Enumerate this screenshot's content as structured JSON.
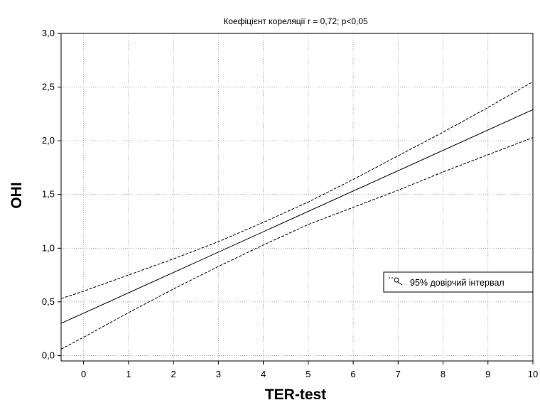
{
  "chart_data": {
    "type": "line",
    "title": "Коефіцієнт кореляції r = 0,72; p<0,05",
    "xlabel": "TER-test",
    "ylabel": "OHI",
    "xlim": [
      -0.5,
      10
    ],
    "ylim": [
      -0.05,
      3.0
    ],
    "x_ticks": [
      0,
      1,
      2,
      3,
      4,
      5,
      6,
      7,
      8,
      9,
      10
    ],
    "x_tick_labels": [
      "0",
      "1",
      "2",
      "3",
      "4",
      "5",
      "6",
      "7",
      "8",
      "9",
      "10"
    ],
    "y_ticks": [
      0,
      0.5,
      1.0,
      1.5,
      2.0,
      2.5,
      3.0
    ],
    "y_tick_labels": [
      "0,0",
      "0,5",
      "1,0",
      "1,5",
      "2,0",
      "2,5",
      "3,0"
    ],
    "grid": true,
    "legend_position": "right",
    "series": [
      {
        "role": "regression",
        "style": "solid",
        "x": [
          -0.5,
          10
        ],
        "y": [
          0.3,
          2.29
        ]
      },
      {
        "role": "ci-upper",
        "name": "95% довірчий інтервал",
        "style": "dashed",
        "x": [
          -0.5,
          0,
          1,
          2,
          3,
          4,
          5,
          6,
          7,
          8,
          9,
          10
        ],
        "y": [
          0.53,
          0.6,
          0.75,
          0.9,
          1.06,
          1.24,
          1.43,
          1.64,
          1.86,
          2.08,
          2.31,
          2.55
        ]
      },
      {
        "role": "ci-lower",
        "style": "dashed",
        "x": [
          -0.5,
          0,
          1,
          2,
          3,
          4,
          5,
          6,
          7,
          8,
          9,
          10
        ],
        "y": [
          0.06,
          0.17,
          0.4,
          0.62,
          0.83,
          1.03,
          1.22,
          1.38,
          1.54,
          1.71,
          1.87,
          2.03
        ]
      }
    ],
    "colors": {
      "line": "#000000",
      "grid": "#9a9a9a",
      "background": "#ffffff"
    }
  }
}
